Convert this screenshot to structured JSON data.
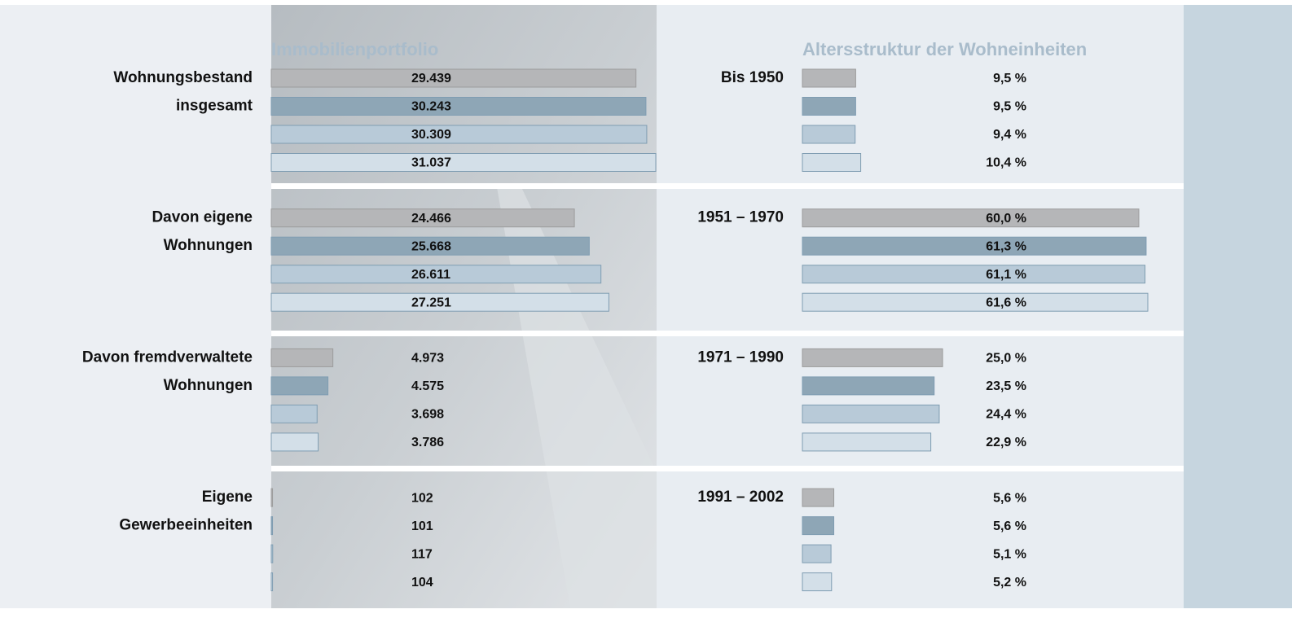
{
  "chart_data": [
    {
      "type": "bar",
      "orientation": "horizontal",
      "title": "Immobilienportfolio",
      "categories": [
        [
          "Wohnungsbestand",
          "insgesamt"
        ],
        [
          "Davon eigene",
          "Wohnungen"
        ],
        [
          "Davon fremdverwaltete",
          "Wohnungen"
        ],
        [
          "Eigene",
          "Gewerbeeinheiten"
        ]
      ],
      "series": [
        {
          "color": "#b5b6b8",
          "values": [
            29439,
            24466,
            4973,
            102
          ],
          "value_labels": [
            "29.439",
            "24.466",
            "4.973",
            "102"
          ]
        },
        {
          "color": "#8ea6b6",
          "values": [
            30243,
            25668,
            4575,
            101
          ],
          "value_labels": [
            "30.243",
            "25.668",
            "4.575",
            "101"
          ]
        },
        {
          "color": "#b8cad8",
          "values": [
            30309,
            26611,
            3698,
            117
          ],
          "value_labels": [
            "30.309",
            "26.611",
            "3.698",
            "117"
          ]
        },
        {
          "color": "#d3dfe8",
          "values": [
            31037,
            27251,
            3786,
            104
          ],
          "value_labels": [
            "31.037",
            "27.251",
            "3.786",
            "104"
          ]
        }
      ]
    },
    {
      "type": "bar",
      "orientation": "horizontal",
      "title": "Altersstruktur der Wohneinheiten",
      "categories": [
        [
          "Bis 1950"
        ],
        [
          "1951 – 1970"
        ],
        [
          "1971 – 1990"
        ],
        [
          "1991 – 2002"
        ]
      ],
      "series": [
        {
          "color": "#b5b6b8",
          "values": [
            9.5,
            60.0,
            25.0,
            5.6
          ],
          "value_labels": [
            "9,5 %",
            "60,0 %",
            "25,0 %",
            "5,6 %"
          ]
        },
        {
          "color": "#8ea6b6",
          "values": [
            9.5,
            61.3,
            23.5,
            5.6
          ],
          "value_labels": [
            "9,5 %",
            "61,3 %",
            "23,5 %",
            "5,6 %"
          ]
        },
        {
          "color": "#b8cad8",
          "values": [
            9.4,
            61.1,
            24.4,
            5.1
          ],
          "value_labels": [
            "9,4 %",
            "61,1 %",
            "24,4 %",
            "5,1 %"
          ]
        },
        {
          "color": "#d3dfe8",
          "values": [
            10.4,
            61.6,
            22.9,
            5.2
          ],
          "value_labels": [
            "10,4 %",
            "61,6 %",
            "22,9 %",
            "5,2 %"
          ]
        }
      ]
    }
  ]
}
